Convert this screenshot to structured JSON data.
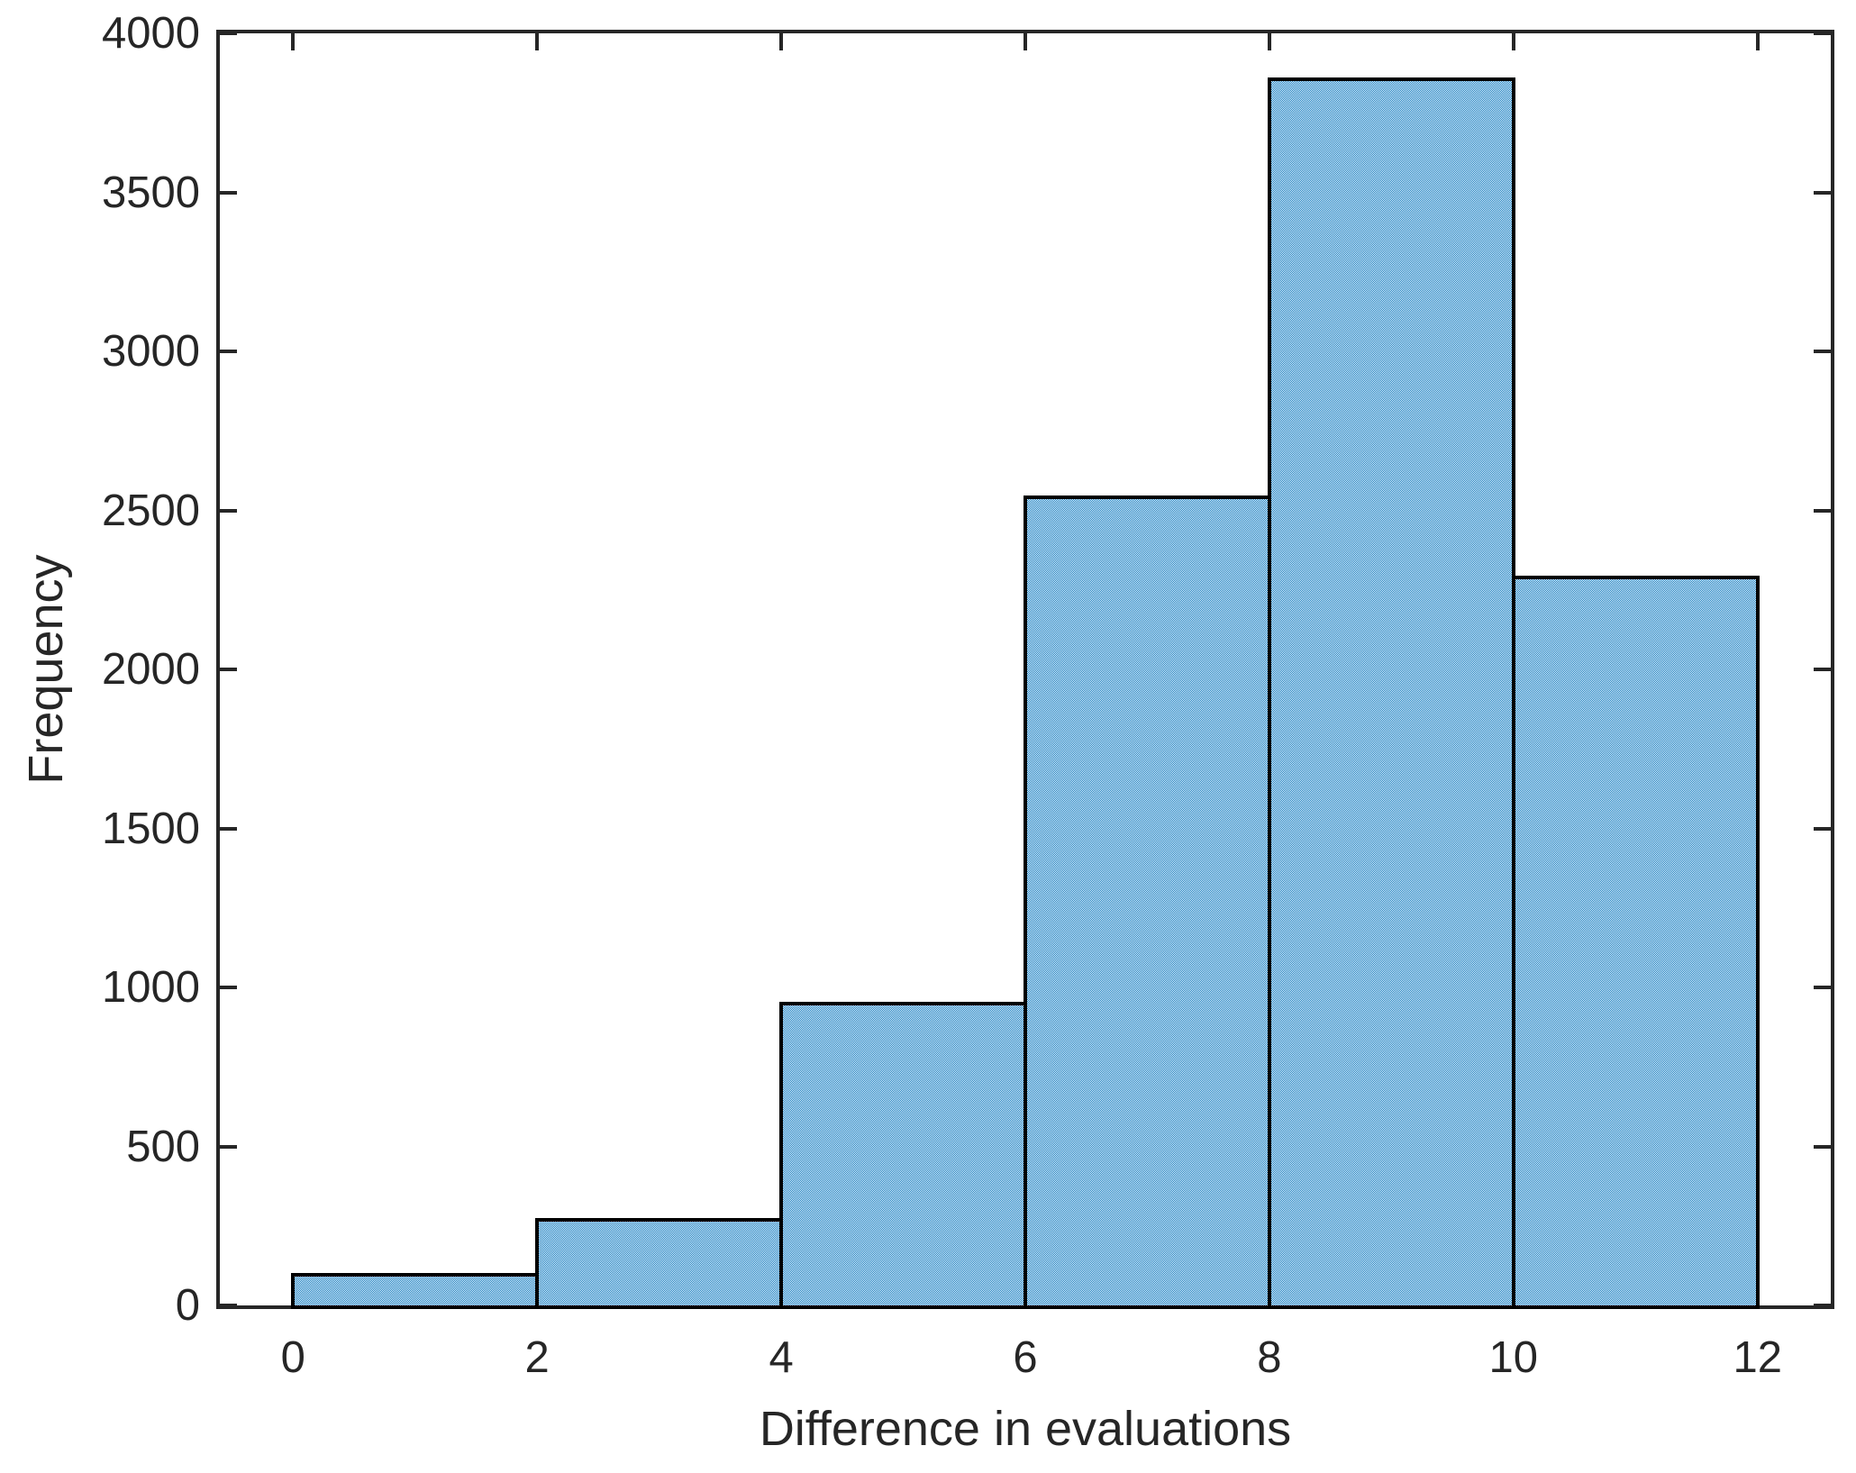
{
  "chart_data": {
    "type": "bar",
    "subtype": "histogram",
    "title": "",
    "xlabel": "Difference in evaluations",
    "ylabel": "Frequency",
    "bin_edges": [
      0,
      2,
      4,
      6,
      8,
      10,
      12
    ],
    "values": [
      95,
      270,
      950,
      2540,
      3855,
      2290
    ],
    "xlim": [
      -0.6,
      12.6
    ],
    "ylim": [
      0,
      4000
    ],
    "x_ticks": [
      0,
      2,
      4,
      6,
      8,
      10,
      12
    ],
    "y_ticks": [
      0,
      500,
      1000,
      1500,
      2000,
      2500,
      3000,
      3500,
      4000
    ],
    "grid": false,
    "legend": null,
    "tick_style": "inward, mirrored on top and right axes",
    "bar_fill_color": "#0072bd",
    "bar_fill_pattern": "50% white dither (checkerboard)",
    "bar_edge_color": "#000000",
    "axis_color": "#262626",
    "background_color": "#ffffff"
  }
}
